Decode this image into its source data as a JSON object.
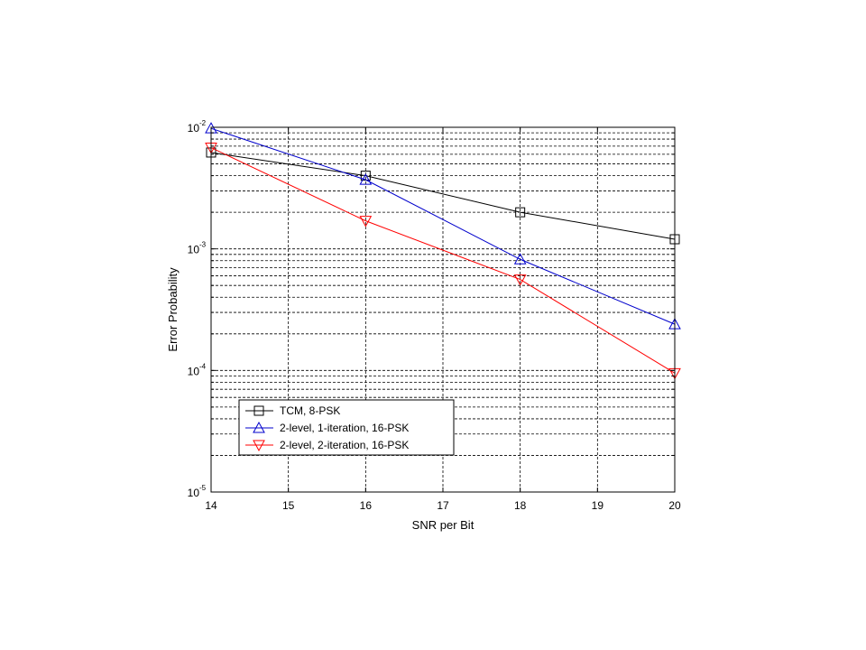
{
  "chart_data": {
    "type": "line",
    "xlabel": "SNR per Bit",
    "ylabel": "Error Probability",
    "xlim": [
      14,
      20
    ],
    "ylim": [
      1e-05,
      0.01
    ],
    "yscale": "log",
    "grid": true,
    "legend_position": "bottom-left",
    "xticks": [
      "14",
      "15",
      "16",
      "17",
      "18",
      "19",
      "20"
    ],
    "yticks": [
      {
        "base": "10",
        "exp": "-5",
        "value": 1e-05
      },
      {
        "base": "10",
        "exp": "-4",
        "value": 0.0001
      },
      {
        "base": "10",
        "exp": "-3",
        "value": 0.001
      },
      {
        "base": "10",
        "exp": "-2",
        "value": 0.01
      }
    ],
    "series": [
      {
        "name": "TCM, 8-PSK",
        "color": "#000000",
        "marker": "square",
        "x": [
          14,
          16,
          18,
          20
        ],
        "y": [
          0.0062,
          0.004,
          0.002,
          0.0012
        ]
      },
      {
        "name": "2-level, 1-iteration, 16-PSK",
        "color": "#0000cc",
        "marker": "triangle-up",
        "x": [
          14,
          16,
          18,
          20
        ],
        "y": [
          0.0098,
          0.0037,
          0.00082,
          0.00024
        ]
      },
      {
        "name": "2-level, 2-iteration, 16-PSK",
        "color": "#ff0000",
        "marker": "triangle-down",
        "x": [
          14,
          16,
          18,
          20
        ],
        "y": [
          0.0068,
          0.0017,
          0.00056,
          9.5e-05
        ]
      }
    ]
  }
}
